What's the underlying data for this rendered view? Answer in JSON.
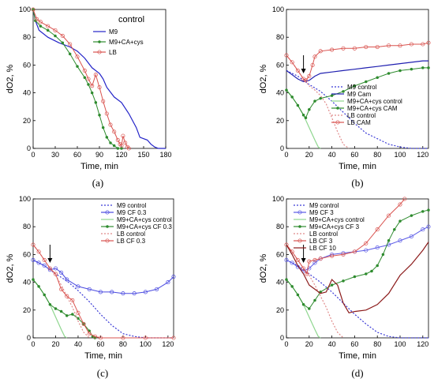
{
  "chart_data": [
    {
      "panel": "(a)",
      "type": "line",
      "xlabel": "Time, min",
      "ylabel": "dO2, %",
      "xlim": [
        0,
        180
      ],
      "ylim": [
        0,
        100
      ],
      "xticks": [
        "0",
        "30",
        "60",
        "90",
        "120",
        "150",
        "180"
      ],
      "yticks": [
        "0",
        "20",
        "40",
        "60",
        "80",
        "100"
      ],
      "legend_title": "control",
      "legend_position": "top-right",
      "series": [
        {
          "name": "M9",
          "color": "#2323c8",
          "style": "solid",
          "marker": "none",
          "x": [
            0,
            3,
            8,
            20,
            35,
            50,
            60,
            70,
            80,
            90,
            95,
            100,
            110,
            120,
            130,
            140,
            145,
            150,
            155,
            160,
            165,
            170,
            180
          ],
          "y": [
            100,
            92,
            85,
            80,
            76,
            73,
            70,
            65,
            58,
            54,
            50,
            44,
            37,
            33,
            25,
            15,
            8,
            7,
            6,
            3,
            1,
            0,
            0
          ]
        },
        {
          "name": "M9+CA+cys",
          "color": "#2e8b2e",
          "style": "solid",
          "marker": "dot",
          "x": [
            0,
            3,
            10,
            20,
            30,
            40,
            50,
            60,
            70,
            75,
            80,
            85,
            90,
            95,
            100,
            105,
            110,
            115,
            120
          ],
          "y": [
            100,
            92,
            88,
            85,
            81,
            76,
            68,
            59,
            51,
            46,
            40,
            33,
            24,
            15,
            8,
            4,
            2,
            0,
            0
          ]
        },
        {
          "name": "LB",
          "color": "#d9534f",
          "style": "solid",
          "marker": "open-circle",
          "x": [
            0,
            5,
            10,
            20,
            30,
            40,
            50,
            60,
            70,
            75,
            80,
            85,
            90,
            95,
            100,
            105,
            110,
            115,
            118,
            120,
            122,
            125,
            128,
            130
          ],
          "y": [
            100,
            93,
            91,
            88,
            85,
            81,
            75,
            66,
            56,
            50,
            45,
            53,
            44,
            34,
            25,
            17,
            12,
            6,
            3,
            2,
            9,
            4,
            1,
            0
          ]
        }
      ]
    },
    {
      "panel": "(b)",
      "type": "line",
      "xlabel": "Time, min",
      "ylabel": "dO2, %",
      "xlim": [
        0,
        125
      ],
      "ylim": [
        0,
        100
      ],
      "xticks": [
        "0",
        "20",
        "40",
        "60",
        "80",
        "100",
        "120"
      ],
      "yticks": [
        "0",
        "20",
        "40",
        "60",
        "80",
        "100"
      ],
      "legend_position": "bottom-right",
      "arrow_at_x": 15,
      "series": [
        {
          "name": "M9 control",
          "color": "#3a3ad6",
          "style": "dotted",
          "marker": "none",
          "x": [
            0,
            10,
            20,
            30,
            40,
            50,
            60,
            70,
            80,
            90,
            100,
            110,
            125
          ],
          "y": [
            56,
            52,
            46,
            41,
            34,
            26,
            18,
            11,
            7,
            3,
            1,
            0,
            0
          ]
        },
        {
          "name": "M9 Cam",
          "color": "#1f1fb0",
          "style": "solid",
          "marker": "none",
          "x": [
            0,
            5,
            10,
            15,
            20,
            25,
            30,
            40,
            50,
            60,
            70,
            80,
            90,
            100,
            110,
            120,
            125
          ],
          "y": [
            56,
            53,
            50,
            48,
            49,
            52,
            54,
            55,
            56,
            57,
            58,
            59,
            60,
            61,
            62,
            63,
            63
          ]
        },
        {
          "name": "M9+CA+cys control",
          "color": "#8fd68f",
          "style": "solid",
          "marker": "none",
          "x": [
            0,
            5,
            10,
            15,
            20,
            25,
            28,
            30
          ],
          "y": [
            42,
            37,
            31,
            24,
            15,
            6,
            1,
            0
          ]
        },
        {
          "name": "M9+CA+cys CAM",
          "color": "#2e8b2e",
          "style": "solid",
          "marker": "dot",
          "x": [
            0,
            5,
            10,
            15,
            17,
            20,
            25,
            30,
            40,
            50,
            60,
            70,
            80,
            90,
            100,
            110,
            120,
            125
          ],
          "y": [
            42,
            37,
            31,
            24,
            22,
            28,
            34,
            36,
            38,
            41,
            45,
            48,
            51,
            54,
            56,
            57,
            58,
            58
          ]
        },
        {
          "name": "LB control",
          "color": "#e08a8a",
          "style": "dotted",
          "marker": "none",
          "x": [
            0,
            5,
            10,
            15,
            20,
            25,
            30,
            35,
            40,
            45,
            50,
            55
          ],
          "y": [
            67,
            62,
            56,
            50,
            45,
            42,
            38,
            32,
            22,
            12,
            3,
            0
          ]
        },
        {
          "name": "LB CAM",
          "color": "#d9534f",
          "style": "solid",
          "marker": "open-circle",
          "x": [
            0,
            5,
            10,
            15,
            17,
            20,
            23,
            25,
            30,
            40,
            50,
            60,
            70,
            80,
            90,
            100,
            110,
            120,
            125
          ],
          "y": [
            67,
            62,
            56,
            50,
            49,
            52,
            60,
            66,
            70,
            71,
            72,
            72,
            73,
            73,
            74,
            74,
            75,
            75,
            76
          ]
        }
      ]
    },
    {
      "panel": "(c)",
      "type": "line",
      "xlabel": "Time, min",
      "ylabel": "dO2, %",
      "xlim": [
        0,
        125
      ],
      "ylim": [
        0,
        100
      ],
      "xticks": [
        "0",
        "20",
        "40",
        "60",
        "80",
        "100",
        "120"
      ],
      "yticks": [
        "0",
        "20",
        "40",
        "60",
        "80",
        "100"
      ],
      "legend_position": "top-right",
      "arrow_at_x": 15,
      "series": [
        {
          "name": "M9 control",
          "color": "#3a3ad6",
          "style": "dotted",
          "marker": "none",
          "x": [
            0,
            10,
            20,
            30,
            40,
            50,
            60,
            70,
            80,
            90,
            100,
            110,
            125
          ],
          "y": [
            56,
            52,
            46,
            41,
            34,
            26,
            17,
            9,
            3,
            1,
            0,
            0,
            0
          ]
        },
        {
          "name": "M9 CF 0.3",
          "color": "#4a4ae0",
          "style": "solid",
          "marker": "open-circle",
          "x": [
            0,
            5,
            10,
            15,
            20,
            25,
            30,
            40,
            50,
            60,
            70,
            80,
            90,
            100,
            110,
            120,
            125
          ],
          "y": [
            56,
            54,
            52,
            49,
            50,
            47,
            42,
            37,
            35,
            33,
            33,
            32,
            32,
            33,
            35,
            40,
            44
          ]
        },
        {
          "name": "M9+CA+cys control",
          "color": "#8fd68f",
          "style": "solid",
          "marker": "none",
          "x": [
            0,
            5,
            10,
            15,
            20,
            25,
            28,
            30
          ],
          "y": [
            42,
            37,
            31,
            24,
            15,
            6,
            1,
            0
          ]
        },
        {
          "name": "M9+CA+cys CF 0.3",
          "color": "#2e8b2e",
          "style": "solid",
          "marker": "dot",
          "x": [
            0,
            5,
            10,
            15,
            20,
            25,
            30,
            35,
            40,
            45,
            50,
            53,
            55
          ],
          "y": [
            42,
            37,
            31,
            24,
            21,
            19,
            16,
            17,
            14,
            10,
            5,
            1,
            0
          ]
        },
        {
          "name": "LB control",
          "color": "#e08a8a",
          "style": "dotted",
          "marker": "none",
          "x": [
            0,
            5,
            10,
            15,
            20,
            25,
            30,
            35,
            40,
            45,
            50
          ],
          "y": [
            67,
            62,
            56,
            50,
            45,
            38,
            30,
            22,
            12,
            4,
            0
          ]
        },
        {
          "name": "LB CF 0.3",
          "color": "#d9534f",
          "style": "solid",
          "marker": "open-circle",
          "x": [
            0,
            5,
            10,
            15,
            20,
            25,
            30,
            35,
            40,
            45,
            50,
            55,
            60,
            80,
            100,
            125
          ],
          "y": [
            67,
            62,
            56,
            50,
            46,
            35,
            30,
            27,
            18,
            10,
            3,
            1,
            0,
            0,
            0,
            0
          ]
        }
      ]
    },
    {
      "panel": "(d)",
      "type": "line",
      "xlabel": "Time, min",
      "ylabel": "dO2, %",
      "xlim": [
        0,
        125
      ],
      "ylim": [
        0,
        100
      ],
      "xticks": [
        "0",
        "20",
        "40",
        "60",
        "80",
        "100",
        "120"
      ],
      "yticks": [
        "0",
        "20",
        "40",
        "60",
        "80",
        "100"
      ],
      "legend_position": "top-right",
      "arrow_at_x": 15,
      "series": [
        {
          "name": "M9 control",
          "color": "#3a3ad6",
          "style": "dotted",
          "marker": "none",
          "x": [
            0,
            10,
            20,
            30,
            40,
            50,
            60,
            70,
            80,
            90,
            100,
            110,
            125
          ],
          "y": [
            56,
            52,
            46,
            40,
            33,
            25,
            17,
            10,
            4,
            1,
            0,
            0,
            0
          ]
        },
        {
          "name": "M9 CF 3",
          "color": "#5a5ae6",
          "style": "solid",
          "marker": "open-circle",
          "x": [
            0,
            5,
            10,
            15,
            20,
            25,
            30,
            40,
            50,
            60,
            70,
            80,
            90,
            100,
            110,
            120,
            125
          ],
          "y": [
            56,
            54,
            51,
            48,
            50,
            54,
            57,
            60,
            61,
            62,
            63,
            65,
            67,
            70,
            73,
            78,
            80
          ]
        },
        {
          "name": "M9+CA+cys control",
          "color": "#8fd68f",
          "style": "solid",
          "marker": "none",
          "x": [
            0,
            5,
            10,
            15,
            20,
            25,
            28,
            30
          ],
          "y": [
            42,
            37,
            31,
            24,
            15,
            6,
            1,
            0
          ]
        },
        {
          "name": "M9+CA+cys CF 3",
          "color": "#2e8b2e",
          "style": "solid",
          "marker": "dot",
          "x": [
            0,
            5,
            10,
            15,
            20,
            25,
            30,
            40,
            50,
            60,
            70,
            75,
            80,
            85,
            90,
            95,
            100,
            110,
            120,
            125
          ],
          "y": [
            42,
            37,
            31,
            24,
            21,
            27,
            33,
            38,
            41,
            44,
            46,
            48,
            52,
            60,
            70,
            78,
            84,
            88,
            91,
            92
          ]
        },
        {
          "name": "LB control",
          "color": "#e08a8a",
          "style": "dotted",
          "marker": "none",
          "x": [
            0,
            5,
            10,
            15,
            20,
            25,
            30,
            35,
            40,
            45,
            50
          ],
          "y": [
            67,
            62,
            56,
            50,
            45,
            38,
            30,
            22,
            12,
            4,
            0
          ]
        },
        {
          "name": "LB CF 3",
          "color": "#d9534f",
          "style": "solid",
          "marker": "open-circle",
          "x": [
            0,
            5,
            10,
            15,
            18,
            20,
            25,
            30,
            40,
            50,
            60,
            70,
            80,
            90,
            100,
            104
          ],
          "y": [
            67,
            62,
            56,
            50,
            46,
            55,
            56,
            57,
            59,
            60,
            62,
            68,
            78,
            88,
            96,
            100
          ]
        },
        {
          "name": "LB CF 10",
          "color": "#8b1a1a",
          "style": "solid",
          "marker": "none",
          "x": [
            0,
            5,
            10,
            15,
            20,
            25,
            30,
            35,
            40,
            45,
            50,
            55,
            60,
            70,
            80,
            90,
            100,
            110,
            120,
            125
          ],
          "y": [
            67,
            60,
            52,
            46,
            38,
            35,
            32,
            33,
            42,
            38,
            25,
            18,
            19,
            20,
            24,
            32,
            45,
            53,
            63,
            69
          ]
        }
      ]
    }
  ]
}
